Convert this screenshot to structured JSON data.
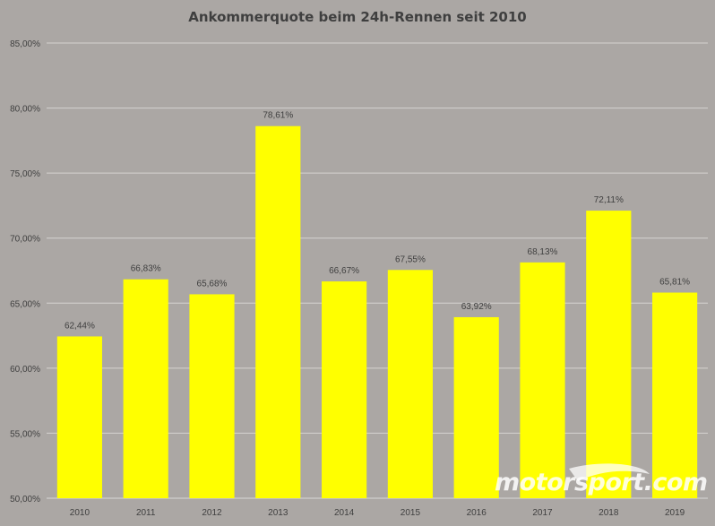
{
  "chart_data": {
    "type": "bar",
    "title": "Ankommerquote beim 24h-Rennen seit 2010",
    "categories": [
      "2010",
      "2011",
      "2012",
      "2013",
      "2014",
      "2015",
      "2016",
      "2017",
      "2018",
      "2019"
    ],
    "values": [
      62.44,
      66.83,
      65.68,
      78.61,
      66.67,
      67.55,
      63.92,
      68.13,
      72.11,
      65.81
    ],
    "data_labels": [
      "62,44%",
      "66,83%",
      "65,68%",
      "78,61%",
      "66,67%",
      "67,55%",
      "63,92%",
      "68,13%",
      "72,11%",
      "65,81%"
    ],
    "ylim": [
      50,
      85
    ],
    "y_ticks": [
      50,
      55,
      60,
      65,
      70,
      75,
      80,
      85
    ],
    "y_tick_labels": [
      "50,00%",
      "55,00%",
      "60,00%",
      "65,00%",
      "70,00%",
      "75,00%",
      "80,00%",
      "85,00%"
    ],
    "xlabel": "",
    "ylabel": "",
    "grid": true,
    "bar_color": "#ffff00",
    "grid_color": "#d6d3d1",
    "label_color": "#3f3f3f"
  },
  "watermark": {
    "text": "motorsport.com"
  }
}
